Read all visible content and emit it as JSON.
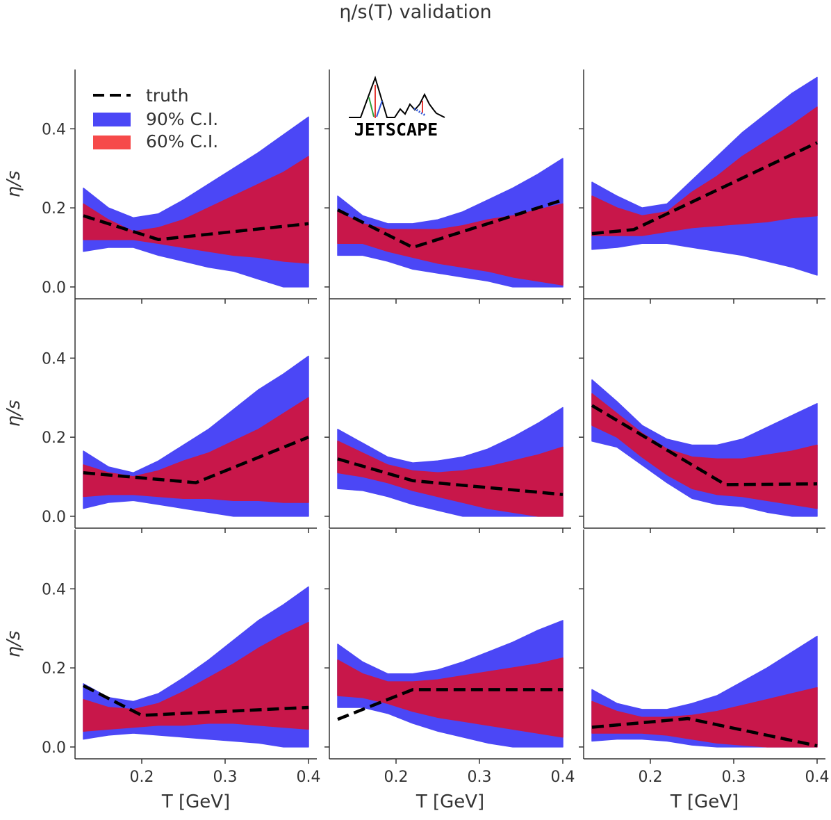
{
  "figure": {
    "title": "η/s(T) validation",
    "logo_text": "JETSCAPE",
    "colors": {
      "ci90": "#4b47f6",
      "ci60": "#c8174a",
      "truth": "#000000",
      "axis": "#333333"
    }
  },
  "legend": [
    {
      "label": "truth",
      "kind": "dashed-line"
    },
    {
      "label": "90%  C.I.",
      "kind": "patch-blue"
    },
    {
      "label": "60%  C.I.",
      "kind": "patch-red"
    }
  ],
  "chart_data": [
    {
      "type": "area",
      "row": 0,
      "col": 0,
      "xlabel": "",
      "ylabel": "η/s",
      "xlim": [
        0.12,
        0.41
      ],
      "ylim": [
        -0.03,
        0.55
      ],
      "xticks": [
        "0.2",
        "0.3",
        "0.4"
      ],
      "yticks": [
        "0.0",
        "0.2",
        "0.4"
      ],
      "x": [
        0.13,
        0.16,
        0.19,
        0.22,
        0.25,
        0.28,
        0.31,
        0.34,
        0.37,
        0.4
      ],
      "ci90_upper": [
        0.25,
        0.2,
        0.175,
        0.185,
        0.22,
        0.26,
        0.3,
        0.34,
        0.385,
        0.43
      ],
      "ci90_lower": [
        0.09,
        0.1,
        0.1,
        0.08,
        0.065,
        0.05,
        0.04,
        0.02,
        0.0,
        0.0
      ],
      "ci60_upper": [
        0.21,
        0.17,
        0.14,
        0.15,
        0.17,
        0.2,
        0.23,
        0.26,
        0.29,
        0.33
      ],
      "ci60_lower": [
        0.12,
        0.12,
        0.12,
        0.11,
        0.1,
        0.09,
        0.08,
        0.075,
        0.065,
        0.06
      ],
      "truth_x": [
        0.13,
        0.22,
        0.4
      ],
      "truth_y": [
        0.18,
        0.12,
        0.16
      ]
    },
    {
      "type": "area",
      "row": 0,
      "col": 1,
      "xlabel": "",
      "ylabel": "",
      "xlim": [
        0.12,
        0.41
      ],
      "ylim": [
        -0.03,
        0.55
      ],
      "xticks": [
        "0.2",
        "0.3",
        "0.4"
      ],
      "yticks": [
        "0.0",
        "0.2",
        "0.4"
      ],
      "x": [
        0.13,
        0.16,
        0.19,
        0.22,
        0.25,
        0.28,
        0.31,
        0.34,
        0.37,
        0.4
      ],
      "ci90_upper": [
        0.23,
        0.18,
        0.16,
        0.16,
        0.17,
        0.19,
        0.22,
        0.25,
        0.285,
        0.325
      ],
      "ci90_lower": [
        0.08,
        0.08,
        0.065,
        0.045,
        0.035,
        0.025,
        0.015,
        0.0,
        0.0,
        0.0
      ],
      "ci60_upper": [
        0.19,
        0.16,
        0.145,
        0.145,
        0.145,
        0.155,
        0.17,
        0.18,
        0.195,
        0.21
      ],
      "ci60_lower": [
        0.11,
        0.11,
        0.09,
        0.075,
        0.06,
        0.05,
        0.04,
        0.025,
        0.015,
        0.005
      ],
      "truth_x": [
        0.13,
        0.22,
        0.4
      ],
      "truth_y": [
        0.195,
        0.1,
        0.22
      ]
    },
    {
      "type": "area",
      "row": 0,
      "col": 2,
      "xlabel": "",
      "ylabel": "",
      "xlim": [
        0.12,
        0.41
      ],
      "ylim": [
        -0.03,
        0.55
      ],
      "xticks": [
        "0.2",
        "0.3",
        "0.4"
      ],
      "yticks": [
        "0.0",
        "0.2",
        "0.4"
      ],
      "x": [
        0.13,
        0.16,
        0.19,
        0.22,
        0.25,
        0.28,
        0.31,
        0.34,
        0.37,
        0.4
      ],
      "ci90_upper": [
        0.265,
        0.23,
        0.2,
        0.21,
        0.27,
        0.33,
        0.39,
        0.44,
        0.49,
        0.53
      ],
      "ci90_lower": [
        0.095,
        0.1,
        0.11,
        0.11,
        0.1,
        0.09,
        0.08,
        0.065,
        0.05,
        0.03
      ],
      "ci60_upper": [
        0.23,
        0.2,
        0.18,
        0.19,
        0.24,
        0.28,
        0.33,
        0.37,
        0.41,
        0.455
      ],
      "ci60_lower": [
        0.13,
        0.13,
        0.13,
        0.14,
        0.15,
        0.155,
        0.16,
        0.165,
        0.175,
        0.18
      ],
      "truth_x": [
        0.13,
        0.18,
        0.4
      ],
      "truth_y": [
        0.135,
        0.145,
        0.365
      ]
    },
    {
      "type": "area",
      "row": 1,
      "col": 0,
      "xlabel": "",
      "ylabel": "η/s",
      "xlim": [
        0.12,
        0.41
      ],
      "ylim": [
        -0.03,
        0.55
      ],
      "xticks": [
        "0.2",
        "0.3",
        "0.4"
      ],
      "yticks": [
        "0.0",
        "0.2",
        "0.4"
      ],
      "x": [
        0.13,
        0.16,
        0.19,
        0.22,
        0.25,
        0.28,
        0.31,
        0.34,
        0.37,
        0.4
      ],
      "ci90_upper": [
        0.165,
        0.125,
        0.11,
        0.14,
        0.18,
        0.22,
        0.27,
        0.32,
        0.36,
        0.405
      ],
      "ci90_lower": [
        0.02,
        0.035,
        0.04,
        0.03,
        0.02,
        0.01,
        0.0,
        0.0,
        0.0,
        0.0
      ],
      "ci60_upper": [
        0.13,
        0.11,
        0.1,
        0.115,
        0.14,
        0.16,
        0.19,
        0.22,
        0.26,
        0.3
      ],
      "ci60_lower": [
        0.05,
        0.055,
        0.055,
        0.05,
        0.045,
        0.045,
        0.04,
        0.04,
        0.035,
        0.035
      ],
      "truth_x": [
        0.13,
        0.265,
        0.4
      ],
      "truth_y": [
        0.11,
        0.085,
        0.2
      ]
    },
    {
      "type": "area",
      "row": 1,
      "col": 1,
      "xlabel": "",
      "ylabel": "",
      "xlim": [
        0.12,
        0.41
      ],
      "ylim": [
        -0.03,
        0.55
      ],
      "xticks": [
        "0.2",
        "0.3",
        "0.4"
      ],
      "yticks": [
        "0.0",
        "0.2",
        "0.4"
      ],
      "x": [
        0.13,
        0.16,
        0.19,
        0.22,
        0.25,
        0.28,
        0.31,
        0.34,
        0.37,
        0.4
      ],
      "ci90_upper": [
        0.22,
        0.185,
        0.15,
        0.135,
        0.14,
        0.15,
        0.17,
        0.2,
        0.235,
        0.275
      ],
      "ci90_lower": [
        0.07,
        0.065,
        0.05,
        0.03,
        0.015,
        0.0,
        0.0,
        0.0,
        0.0,
        0.0
      ],
      "ci60_upper": [
        0.19,
        0.16,
        0.13,
        0.115,
        0.11,
        0.115,
        0.125,
        0.14,
        0.155,
        0.175
      ],
      "ci60_lower": [
        0.11,
        0.1,
        0.085,
        0.065,
        0.05,
        0.035,
        0.02,
        0.01,
        0.0,
        0.0
      ],
      "truth_x": [
        0.13,
        0.22,
        0.4
      ],
      "truth_y": [
        0.145,
        0.09,
        0.055
      ]
    },
    {
      "type": "area",
      "row": 1,
      "col": 2,
      "xlabel": "",
      "ylabel": "",
      "xlim": [
        0.12,
        0.41
      ],
      "ylim": [
        -0.03,
        0.55
      ],
      "xticks": [
        "0.2",
        "0.3",
        "0.4"
      ],
      "yticks": [
        "0.0",
        "0.2",
        "0.4"
      ],
      "x": [
        0.13,
        0.16,
        0.19,
        0.22,
        0.25,
        0.28,
        0.31,
        0.34,
        0.37,
        0.4
      ],
      "ci90_upper": [
        0.345,
        0.29,
        0.23,
        0.195,
        0.18,
        0.18,
        0.195,
        0.225,
        0.255,
        0.285
      ],
      "ci90_lower": [
        0.19,
        0.175,
        0.13,
        0.085,
        0.045,
        0.03,
        0.025,
        0.01,
        0.0,
        0.0
      ],
      "ci60_upper": [
        0.31,
        0.26,
        0.21,
        0.17,
        0.15,
        0.145,
        0.145,
        0.155,
        0.165,
        0.18
      ],
      "ci60_lower": [
        0.23,
        0.2,
        0.15,
        0.105,
        0.07,
        0.055,
        0.05,
        0.04,
        0.03,
        0.02
      ],
      "truth_x": [
        0.13,
        0.29,
        0.4
      ],
      "truth_y": [
        0.28,
        0.08,
        0.082
      ]
    },
    {
      "type": "area",
      "row": 2,
      "col": 0,
      "xlabel": "T [GeV]",
      "ylabel": "η/s",
      "xlim": [
        0.12,
        0.41
      ],
      "ylim": [
        -0.03,
        0.55
      ],
      "xticks": [
        "0.2",
        "0.3",
        "0.4"
      ],
      "yticks": [
        "0.0",
        "0.2",
        "0.4"
      ],
      "x": [
        0.13,
        0.16,
        0.19,
        0.22,
        0.25,
        0.28,
        0.31,
        0.34,
        0.37,
        0.4
      ],
      "ci90_upper": [
        0.16,
        0.125,
        0.115,
        0.135,
        0.175,
        0.22,
        0.27,
        0.32,
        0.36,
        0.405
      ],
      "ci90_lower": [
        0.02,
        0.03,
        0.035,
        0.03,
        0.025,
        0.02,
        0.015,
        0.01,
        0.0,
        0.0
      ],
      "ci60_upper": [
        0.12,
        0.1,
        0.095,
        0.11,
        0.14,
        0.175,
        0.21,
        0.25,
        0.285,
        0.315
      ],
      "ci60_lower": [
        0.04,
        0.045,
        0.05,
        0.055,
        0.055,
        0.06,
        0.06,
        0.055,
        0.05,
        0.045
      ],
      "truth_x": [
        0.13,
        0.2,
        0.4
      ],
      "truth_y": [
        0.155,
        0.08,
        0.1
      ]
    },
    {
      "type": "area",
      "row": 2,
      "col": 1,
      "xlabel": "T [GeV]",
      "ylabel": "",
      "xlim": [
        0.12,
        0.41
      ],
      "ylim": [
        -0.03,
        0.55
      ],
      "xticks": [
        "0.2",
        "0.3",
        "0.4"
      ],
      "yticks": [
        "0.0",
        "0.2",
        "0.4"
      ],
      "x": [
        0.13,
        0.16,
        0.19,
        0.22,
        0.25,
        0.28,
        0.31,
        0.34,
        0.37,
        0.4
      ],
      "ci90_upper": [
        0.26,
        0.215,
        0.185,
        0.185,
        0.195,
        0.215,
        0.24,
        0.265,
        0.295,
        0.32
      ],
      "ci90_lower": [
        0.1,
        0.1,
        0.085,
        0.06,
        0.04,
        0.025,
        0.01,
        0.0,
        0.0,
        0.0
      ],
      "ci60_upper": [
        0.22,
        0.185,
        0.165,
        0.165,
        0.17,
        0.18,
        0.19,
        0.2,
        0.21,
        0.225
      ],
      "ci60_lower": [
        0.13,
        0.125,
        0.11,
        0.09,
        0.075,
        0.065,
        0.055,
        0.045,
        0.035,
        0.025
      ],
      "truth_x": [
        0.13,
        0.22,
        0.4
      ],
      "truth_y": [
        0.07,
        0.145,
        0.145
      ]
    },
    {
      "type": "area",
      "row": 2,
      "col": 2,
      "xlabel": "T [GeV]",
      "ylabel": "",
      "xlim": [
        0.12,
        0.41
      ],
      "ylim": [
        -0.03,
        0.55
      ],
      "xticks": [
        "0.2",
        "0.3",
        "0.4"
      ],
      "yticks": [
        "0.0",
        "0.2",
        "0.4"
      ],
      "x": [
        0.13,
        0.16,
        0.19,
        0.22,
        0.25,
        0.28,
        0.31,
        0.34,
        0.37,
        0.4
      ],
      "ci90_upper": [
        0.145,
        0.11,
        0.095,
        0.095,
        0.11,
        0.13,
        0.165,
        0.2,
        0.24,
        0.28
      ],
      "ci90_lower": [
        0.015,
        0.02,
        0.02,
        0.015,
        0.005,
        0.0,
        0.0,
        0.0,
        0.0,
        0.0
      ],
      "ci60_upper": [
        0.115,
        0.09,
        0.075,
        0.075,
        0.08,
        0.09,
        0.105,
        0.12,
        0.135,
        0.15
      ],
      "ci60_lower": [
        0.035,
        0.035,
        0.035,
        0.03,
        0.02,
        0.01,
        0.005,
        0.0,
        0.0,
        0.0
      ],
      "truth_x": [
        0.13,
        0.245,
        0.4
      ],
      "truth_y": [
        0.05,
        0.072,
        0.003
      ]
    }
  ]
}
